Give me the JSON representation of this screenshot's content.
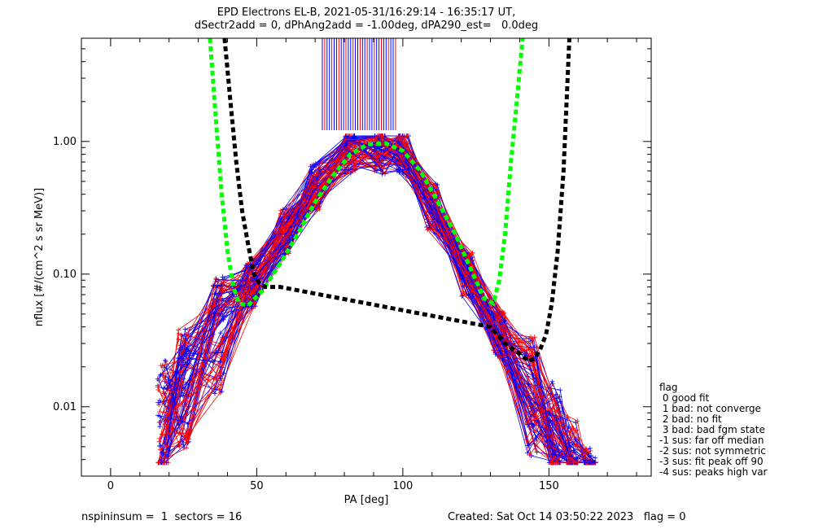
{
  "title": {
    "line1": "EPD Electrons EL-B, 2021-05-31/16:29:14 - 16:35:17 UT,",
    "line2": "dSectr2add = 0, dPhAng2add = -1.00deg, dPA290_est=   0.0deg"
  },
  "footer": {
    "left": "nspininsum =  1  sectors = 16",
    "right": "Created: Sat Oct 14 03:50:22 2023   flag = 0"
  },
  "legend": {
    "title": "flag",
    "items": [
      " 0 good fit",
      " 1 bad: not converge",
      " 2 bad: no fit",
      " 3 bad: bad fgm state",
      "-1 sus: far off median",
      "-2 sus: not symmetric",
      "-3 sus: fit peak off 90",
      "-4 sus: peaks high var"
    ]
  },
  "colors": {
    "blue": "#0000ff",
    "red": "#ff0000",
    "green": "#00ff00",
    "black": "#000000"
  },
  "chart_data": {
    "type": "line",
    "xlabel": "PA [deg]",
    "ylabel": "nflux [#/(cm^2 s sr MeV)]",
    "xlim": [
      -10,
      185
    ],
    "ylim": [
      0.003,
      6.0
    ],
    "yscale": "log",
    "xticks": [
      0,
      50,
      100,
      150
    ],
    "xtick_labels": [
      "0",
      "50",
      "100",
      "150"
    ],
    "yticks": [
      0.01,
      0.1,
      1.0
    ],
    "ytick_labels": [
      "0.01",
      "0.10",
      "1.00"
    ],
    "series": [
      {
        "style": "dashed",
        "color": "green",
        "x": [
          34,
          36,
          38,
          40,
          42,
          44,
          47,
          52,
          58,
          64,
          70,
          76,
          82,
          88,
          94,
          100,
          106,
          112,
          118,
          124,
          128,
          131,
          133,
          135,
          137,
          139,
          141
        ],
        "y": [
          6.0,
          1.5,
          0.4,
          0.15,
          0.08,
          0.06,
          0.058,
          0.075,
          0.12,
          0.2,
          0.35,
          0.55,
          0.8,
          0.95,
          0.97,
          0.85,
          0.6,
          0.35,
          0.2,
          0.1,
          0.065,
          0.06,
          0.09,
          0.2,
          0.7,
          2.0,
          6.0
        ]
      },
      {
        "style": "dashed",
        "color": "black",
        "x": [
          39,
          41,
          43,
          45,
          47,
          49,
          51,
          53,
          58,
          130,
          135,
          140,
          143,
          145,
          147,
          149,
          151,
          153,
          155,
          157
        ],
        "y": [
          6.0,
          2.0,
          0.7,
          0.3,
          0.17,
          0.1,
          0.085,
          0.08,
          0.08,
          0.04,
          0.03,
          0.025,
          0.022,
          0.023,
          0.027,
          0.035,
          0.06,
          0.15,
          0.6,
          6.0
        ]
      }
    ]
  }
}
